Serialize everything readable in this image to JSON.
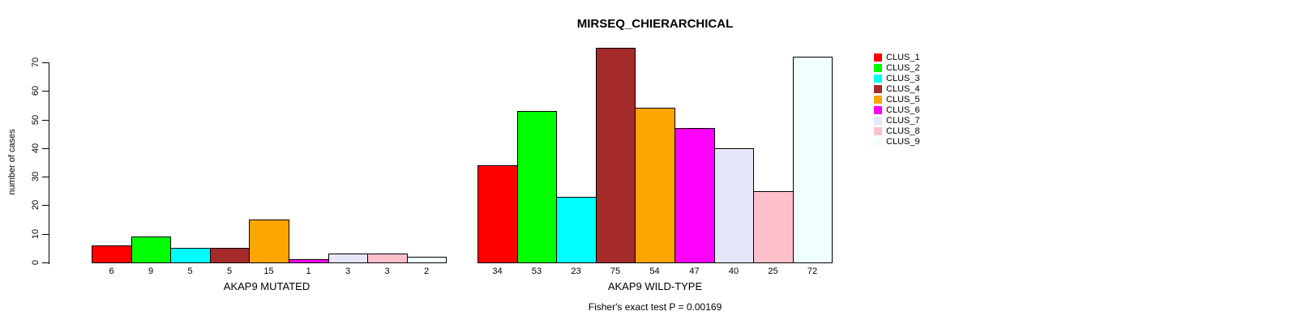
{
  "chart_data": {
    "type": "bar",
    "title": "MIRSEQ_CHIERARCHICAL",
    "ylabel": "number of cases",
    "xlabel": "",
    "ylim": [
      0,
      75
    ],
    "yticks": [
      0,
      10,
      20,
      30,
      40,
      50,
      60,
      70
    ],
    "grid": false,
    "legend_position": "top-right",
    "annotation": "Fisher's exact test P = 0.00169",
    "clusters": [
      {
        "label": "CLUS_1",
        "color": "#FF0000"
      },
      {
        "label": "CLUS_2",
        "color": "#00FF00"
      },
      {
        "label": "CLUS_3",
        "color": "#00FFFF"
      },
      {
        "label": "CLUS_4",
        "color": "#A52A2A"
      },
      {
        "label": "CLUS_5",
        "color": "#FFA500"
      },
      {
        "label": "CLUS_6",
        "color": "#FF00FF"
      },
      {
        "label": "CLUS_7",
        "color": "#E6E6FA"
      },
      {
        "label": "CLUS_8",
        "color": "#FFC0CB"
      },
      {
        "label": "CLUS_9",
        "color": "#F0FFFF"
      }
    ],
    "groups": [
      {
        "xlabel": "AKAP9 MUTATED",
        "values": [
          6,
          9,
          5,
          5,
          15,
          1,
          3,
          3,
          2
        ]
      },
      {
        "xlabel": "AKAP9 WILD-TYPE",
        "values": [
          34,
          53,
          23,
          75,
          54,
          47,
          40,
          25,
          72
        ]
      }
    ]
  }
}
